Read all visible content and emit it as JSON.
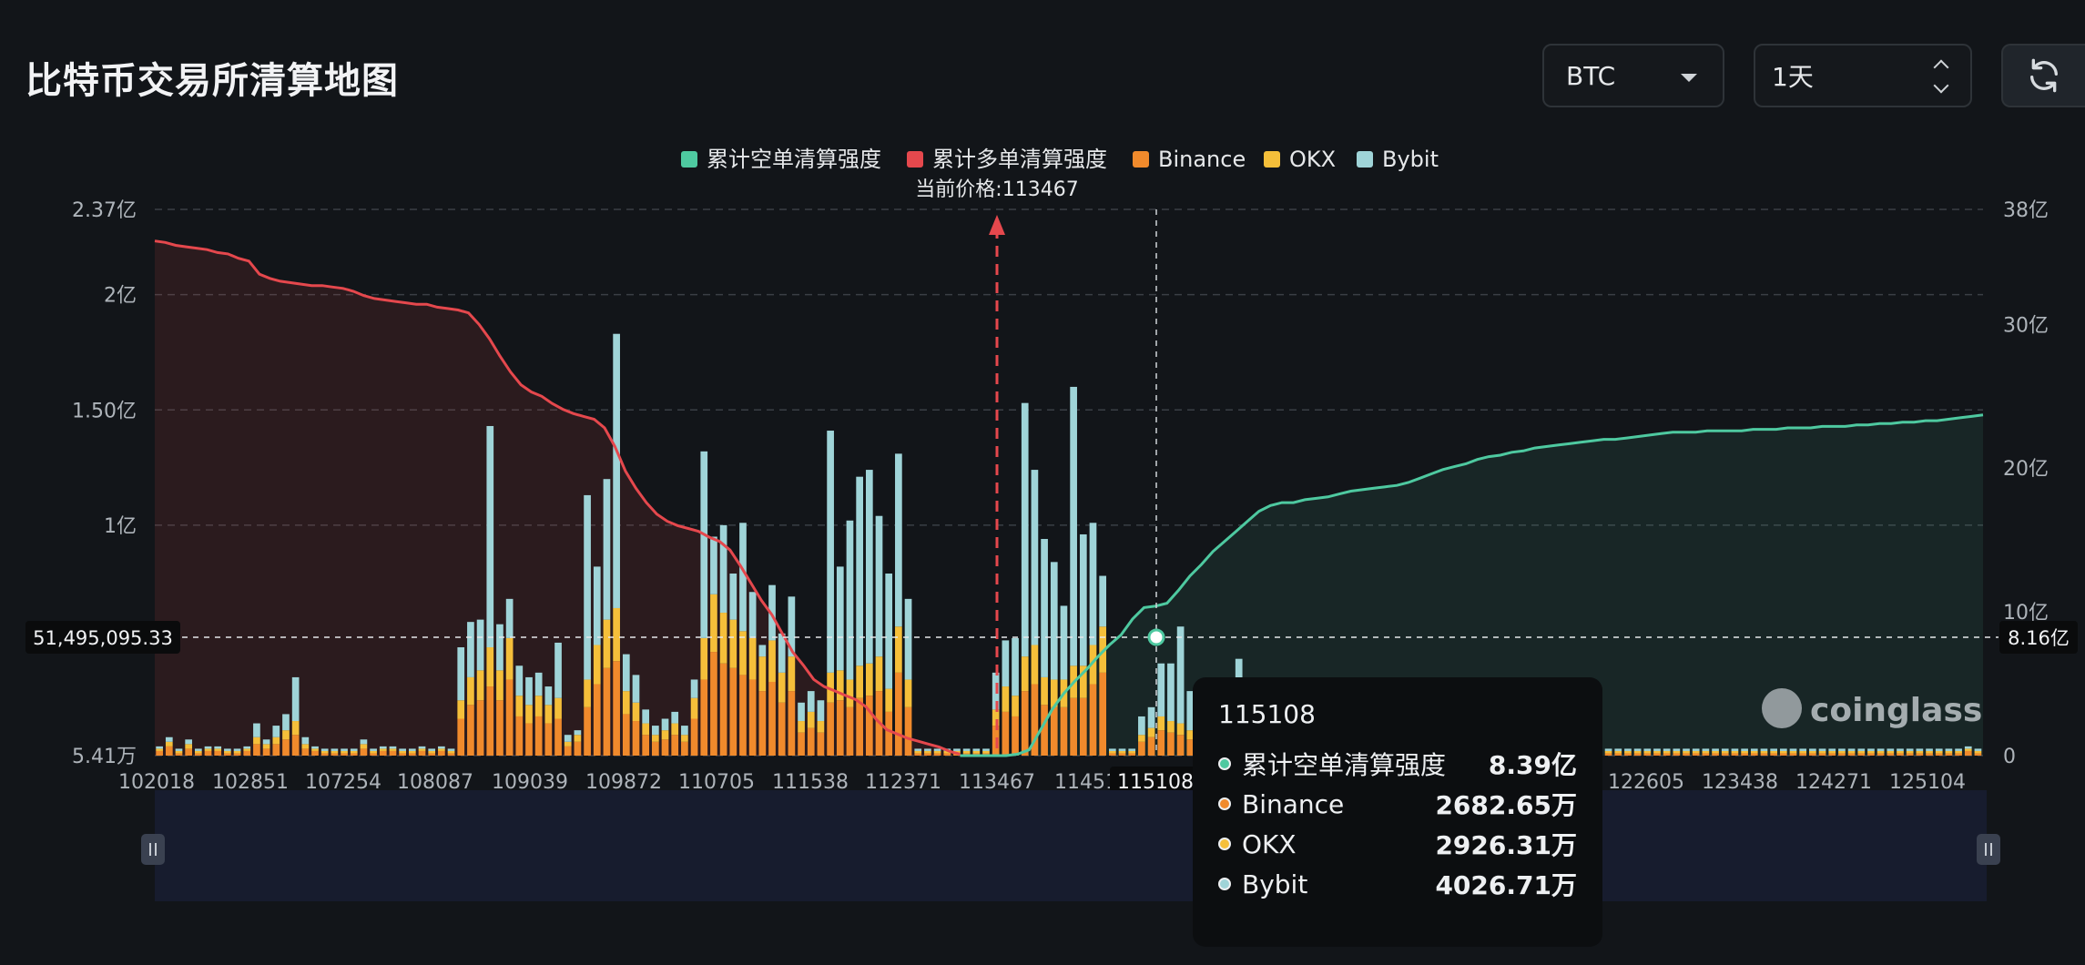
{
  "header": {
    "title": "比特币交易所清算地图",
    "coin_select": "BTC",
    "range_select": "1天"
  },
  "colors": {
    "short": "#4ec9a0",
    "long": "#e5484d",
    "binance": "#f08a2c",
    "okx": "#f5bf3a",
    "bybit": "#9fd4d8",
    "background": "#121519"
  },
  "chart_data": {
    "type": "bar",
    "legend": [
      {
        "name": "累计空单清算强度",
        "color": "#4ec9a0"
      },
      {
        "name": "累计多单清算强度",
        "color": "#e5484d"
      },
      {
        "name": "Binance",
        "color": "#f08a2c"
      },
      {
        "name": "OKX",
        "color": "#f5bf3a"
      },
      {
        "name": "Bybit",
        "color": "#9fd4d8"
      }
    ],
    "legend_position": "top-center",
    "current_price_label": "当前价格:113467",
    "current_price": 113467,
    "x_tick_labels": [
      "102018",
      "102851",
      "107254",
      "108087",
      "109039",
      "109872",
      "110705",
      "111538",
      "112371",
      "113467",
      "11451",
      "115108",
      "122605",
      "123438",
      "124271",
      "125104"
    ],
    "y_left_tick_labels": [
      "5.41万",
      "1亿",
      "1.50亿",
      "2亿",
      "2.37亿"
    ],
    "y_right_tick_labels": [
      "0",
      "10亿",
      "20亿",
      "30亿",
      "38亿"
    ],
    "y_left_range": [
      0,
      2.37
    ],
    "y_right_range": [
      0,
      38
    ],
    "cursor_left_label": "51,495,095.33",
    "cursor_right_label": "8.16亿",
    "watermark": "coinglass",
    "grid": true,
    "bars": {
      "binance": [
        0.02,
        0.04,
        0.01,
        0.03,
        0.01,
        0.02,
        0.02,
        0.01,
        0.01,
        0.02,
        0.05,
        0.03,
        0.05,
        0.07,
        0.09,
        0.03,
        0.02,
        0.01,
        0.01,
        0.01,
        0.01,
        0.03,
        0.01,
        0.02,
        0.02,
        0.01,
        0.01,
        0.02,
        0.01,
        0.02,
        0.01,
        0.16,
        0.22,
        0.24,
        0.3,
        0.24,
        0.33,
        0.17,
        0.14,
        0.17,
        0.14,
        0.16,
        0.04,
        0.06,
        0.21,
        0.31,
        0.38,
        0.41,
        0.18,
        0.15,
        0.09,
        0.06,
        0.07,
        0.09,
        0.06,
        0.16,
        0.33,
        0.45,
        0.4,
        0.38,
        0.35,
        0.33,
        0.28,
        0.32,
        0.23,
        0.28,
        0.1,
        0.12,
        0.1,
        0.23,
        0.24,
        0.21,
        0.25,
        0.26,
        0.28,
        0.19,
        0.36,
        0.21,
        0.01,
        0.01,
        0.01,
        0.01,
        0.01,
        0.01,
        0.01,
        0.01,
        0.13,
        0.19,
        0.17,
        0.28,
        0.31,
        0.22,
        0.21,
        0.21,
        0.25,
        0.25,
        0.31,
        0.36,
        0.01,
        0.01,
        0.01,
        0.06,
        0.08,
        0.11,
        0.1,
        0.09,
        0.07,
        0.09,
        0.06,
        0.06,
        0.05,
        0.06,
        0.06,
        0.04,
        0.01,
        0.01,
        0.01,
        0.02,
        0.01,
        0.01,
        0.01,
        0.01,
        0.01,
        0.02,
        0.01,
        0.01,
        0.01,
        0.01,
        0.01,
        0.01,
        0.01,
        0.02,
        0.01,
        0.02,
        0.01,
        0.03,
        0.01,
        0.01,
        0.01,
        0.01,
        0.01,
        0.01,
        0.01,
        0.01,
        0.01,
        0.01,
        0.02,
        0.01,
        0.01,
        0.01,
        0.01,
        0.01,
        0.01,
        0.01,
        0.01,
        0.01,
        0.01,
        0.01,
        0.01,
        0.01,
        0.01,
        0.01,
        0.01,
        0.01,
        0.01,
        0.01,
        0.01,
        0.01,
        0.01,
        0.01,
        0.01,
        0.01,
        0.01,
        0.01,
        0.01,
        0.01,
        0.01,
        0.01,
        0.01,
        0.01,
        0.01,
        0.01,
        0.01,
        0.01,
        0.01,
        0.01,
        0.02,
        0.01
      ],
      "okx": [
        0.01,
        0.02,
        0.01,
        0.02,
        0.01,
        0.01,
        0.01,
        0.01,
        0.01,
        0.01,
        0.03,
        0.02,
        0.03,
        0.04,
        0.06,
        0.02,
        0.01,
        0.01,
        0.01,
        0.01,
        0.01,
        0.02,
        0.01,
        0.01,
        0.01,
        0.01,
        0.01,
        0.01,
        0.01,
        0.01,
        0.01,
        0.08,
        0.12,
        0.13,
        0.17,
        0.13,
        0.18,
        0.09,
        0.08,
        0.09,
        0.08,
        0.09,
        0.02,
        0.03,
        0.12,
        0.17,
        0.21,
        0.23,
        0.1,
        0.08,
        0.05,
        0.03,
        0.04,
        0.05,
        0.03,
        0.09,
        0.18,
        0.25,
        0.22,
        0.21,
        0.19,
        0.18,
        0.15,
        0.18,
        0.13,
        0.15,
        0.05,
        0.07,
        0.05,
        0.13,
        0.13,
        0.12,
        0.14,
        0.14,
        0.15,
        0.1,
        0.2,
        0.12,
        0.01,
        0.01,
        0.01,
        0.01,
        0.01,
        0.01,
        0.01,
        0.01,
        0.07,
        0.11,
        0.09,
        0.15,
        0.17,
        0.12,
        0.12,
        0.12,
        0.14,
        0.14,
        0.17,
        0.2,
        0.01,
        0.01,
        0.01,
        0.03,
        0.04,
        0.06,
        0.05,
        0.05,
        0.04,
        0.05,
        0.03,
        0.03,
        0.03,
        0.03,
        0.03,
        0.02,
        0.01,
        0.01,
        0.01,
        0.01,
        0.01,
        0.01,
        0.01,
        0.01,
        0.01,
        0.01,
        0.01,
        0.01,
        0.01,
        0.01,
        0.01,
        0.01,
        0.01,
        0.01,
        0.01,
        0.01,
        0.01,
        0.02,
        0.01,
        0.01,
        0.01,
        0.01,
        0.01,
        0.01,
        0.01,
        0.01,
        0.01,
        0.01,
        0.01,
        0.01,
        0.01,
        0.01,
        0.01,
        0.01,
        0.01,
        0.01,
        0.01,
        0.01,
        0.01,
        0.01,
        0.01,
        0.01,
        0.01,
        0.01,
        0.01,
        0.01,
        0.01,
        0.01,
        0.01,
        0.01,
        0.01,
        0.01,
        0.01,
        0.01,
        0.01,
        0.01,
        0.01,
        0.01,
        0.01,
        0.01,
        0.01,
        0.01,
        0.01,
        0.01,
        0.01,
        0.01,
        0.01,
        0.01,
        0.01,
        0.01
      ],
      "bybit": [
        0.01,
        0.02,
        0.01,
        0.02,
        0.01,
        0.01,
        0.01,
        0.01,
        0.01,
        0.01,
        0.06,
        0.02,
        0.05,
        0.07,
        0.19,
        0.03,
        0.01,
        0.01,
        0.01,
        0.01,
        0.01,
        0.02,
        0.01,
        0.01,
        0.01,
        0.01,
        0.01,
        0.01,
        0.01,
        0.01,
        0.01,
        0.23,
        0.24,
        0.22,
        0.96,
        0.2,
        0.17,
        0.13,
        0.12,
        0.1,
        0.08,
        0.24,
        0.03,
        0.02,
        0.8,
        0.34,
        0.61,
        1.19,
        0.16,
        0.12,
        0.06,
        0.04,
        0.05,
        0.05,
        0.04,
        0.08,
        0.81,
        0.25,
        0.38,
        0.2,
        0.47,
        0.2,
        0.05,
        0.24,
        0.17,
        0.26,
        0.08,
        0.09,
        0.09,
        1.05,
        0.45,
        0.69,
        0.82,
        0.84,
        0.61,
        0.5,
        0.75,
        0.35,
        0.01,
        0.01,
        0.01,
        0.01,
        0.01,
        0.01,
        0.01,
        0.01,
        0.16,
        0.2,
        0.25,
        1.1,
        0.76,
        0.6,
        0.51,
        0.32,
        1.21,
        0.57,
        0.53,
        0.22,
        0.01,
        0.01,
        0.01,
        0.08,
        0.09,
        0.23,
        0.25,
        0.42,
        0.17,
        0.08,
        0.13,
        0.13,
        0.15,
        0.33,
        0.05,
        0.08,
        0.01,
        0.01,
        0.01,
        0.01,
        0.01,
        0.01,
        0.01,
        0.01,
        0.01,
        0.01,
        0.01,
        0.01,
        0.01,
        0.01,
        0.01,
        0.01,
        0.01,
        0.02,
        0.01,
        0.01,
        0.01,
        0.11,
        0.01,
        0.01,
        0.01,
        0.01,
        0.01,
        0.01,
        0.01,
        0.01,
        0.01,
        0.01,
        0.01,
        0.01,
        0.01,
        0.01,
        0.01,
        0.01,
        0.01,
        0.01,
        0.01,
        0.01,
        0.01,
        0.01,
        0.01,
        0.01,
        0.01,
        0.01,
        0.01,
        0.01,
        0.01,
        0.01,
        0.01,
        0.01,
        0.01,
        0.01,
        0.01,
        0.01,
        0.01,
        0.01,
        0.01,
        0.01,
        0.01,
        0.01,
        0.01,
        0.01,
        0.01,
        0.01,
        0.01,
        0.01,
        0.01,
        0.01,
        0.01,
        0.01
      ]
    },
    "cumulative_long": [
      35.8,
      35.7,
      35.5,
      35.4,
      35.3,
      35.2,
      35.0,
      34.9,
      34.6,
      34.4,
      33.5,
      33.2,
      33.0,
      32.9,
      32.8,
      32.7,
      32.7,
      32.6,
      32.5,
      32.3,
      32.0,
      31.8,
      31.7,
      31.6,
      31.5,
      31.4,
      31.4,
      31.2,
      31.1,
      31.0,
      30.8,
      30.0,
      29.0,
      27.8,
      26.7,
      25.8,
      25.3,
      25.0,
      24.5,
      24.1,
      23.8,
      23.6,
      23.4,
      22.8,
      21.5,
      19.8,
      18.6,
      17.6,
      16.8,
      16.3,
      16.0,
      15.8,
      15.6,
      15.2,
      14.9,
      14.3,
      13.2,
      12.0,
      10.8,
      9.8,
      8.5,
      7.2,
      6.3,
      5.3,
      4.8,
      4.5,
      4.2,
      3.9,
      3.4,
      2.5,
      1.8,
      1.5,
      1.2,
      1.0,
      0.8,
      0.6,
      0.3,
      0.1
    ],
    "cumulative_short": [
      0,
      0,
      0,
      0,
      0,
      0.1,
      0.4,
      1.8,
      3.2,
      4.3,
      5.2,
      6.0,
      6.9,
      7.7,
      8.4,
      9.5,
      10.3,
      10.4,
      10.6,
      11.5,
      12.5,
      13.3,
      14.2,
      14.9,
      15.6,
      16.3,
      17.0,
      17.4,
      17.6,
      17.6,
      17.8,
      17.9,
      18.0,
      18.2,
      18.4,
      18.5,
      18.6,
      18.7,
      18.8,
      19.0,
      19.3,
      19.6,
      19.9,
      20.1,
      20.3,
      20.6,
      20.8,
      20.9,
      21.1,
      21.2,
      21.4,
      21.5,
      21.6,
      21.7,
      21.8,
      21.9,
      22.0,
      22.0,
      22.1,
      22.2,
      22.3,
      22.4,
      22.5,
      22.5,
      22.5,
      22.6,
      22.6,
      22.6,
      22.6,
      22.7,
      22.7,
      22.7,
      22.8,
      22.8,
      22.8,
      22.9,
      22.9,
      22.9,
      23.0,
      23.0,
      23.1,
      23.1,
      23.2,
      23.2,
      23.3,
      23.3,
      23.4,
      23.5,
      23.6,
      23.7
    ],
    "tooltip": {
      "title": "115108",
      "rows": [
        {
          "name": "累计空单清算强度",
          "value": "8.39亿",
          "color": "#4ec9a0"
        },
        {
          "name": "Binance",
          "value": "2682.65万",
          "color": "#f08a2c"
        },
        {
          "name": "OKX",
          "value": "2926.31万",
          "color": "#f5bf3a"
        },
        {
          "name": "Bybit",
          "value": "4026.71万",
          "color": "#9fd4d8"
        }
      ]
    }
  }
}
